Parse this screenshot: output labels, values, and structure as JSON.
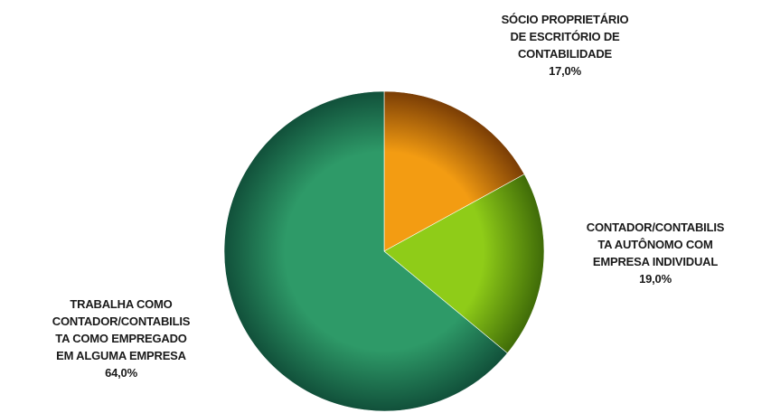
{
  "chart_data": {
    "type": "pie",
    "slices": [
      {
        "label_lines": [
          "SÓCIO PROPRIETÁRIO",
          "DE ESCRITÓRIO DE",
          "CONTABILIDADE"
        ],
        "value": 17.0,
        "value_label": "17,0%",
        "color": "#f39c12",
        "color_dark": "#7a3d05"
      },
      {
        "label_lines": [
          "CONTADOR/CONTABILIS",
          "TA AUTÔNOMO COM",
          "EMPRESA INDIVIDUAL"
        ],
        "value": 19.0,
        "value_label": "19,0%",
        "color": "#8fcc18",
        "color_dark": "#3f6b08"
      },
      {
        "label_lines": [
          "TRABALHA COMO",
          "CONTADOR/CONTABILIS",
          "TA COMO EMPREGADO",
          "EM ALGUMA EMPRESA"
        ],
        "value": 64.0,
        "value_label": "64,0%",
        "color": "#2e9a68",
        "color_dark": "#11503a"
      }
    ],
    "start_angle_deg": 0,
    "direction": "clockwise",
    "legend": "none"
  }
}
